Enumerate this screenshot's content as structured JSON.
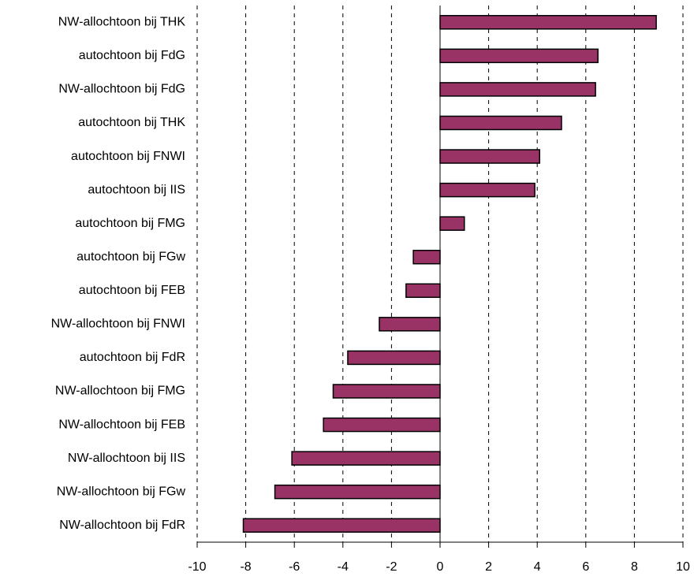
{
  "chart_data": {
    "type": "barh",
    "categories": [
      "NW-allochtoon bij THK",
      "autochtoon bij FdG",
      "NW-allochtoon bij FdG",
      "autochtoon bij THK",
      "autochtoon bij FNWI",
      "autochtoon bij IIS",
      "autochtoon bij FMG",
      "autochtoon bij FGw",
      "autochtoon bij FEB",
      "NW-allochtoon bij FNWI",
      "autochtoon bij FdR",
      "NW-allochtoon bij FMG",
      "NW-allochtoon bij FEB",
      "NW-allochtoon bij IIS",
      "NW-allochtoon bij FGw",
      "NW-allochtoon bij FdR"
    ],
    "values": [
      8.9,
      6.5,
      6.4,
      5.0,
      4.1,
      3.9,
      1.0,
      -1.1,
      -1.4,
      -2.5,
      -3.8,
      -4.4,
      -4.8,
      -6.1,
      -6.8,
      -8.1
    ],
    "color": "#993366",
    "xlim": [
      -10,
      10
    ],
    "xticks": [
      -10,
      -8,
      -6,
      -4,
      -2,
      0,
      2,
      4,
      6,
      8,
      10
    ],
    "grid": true
  }
}
